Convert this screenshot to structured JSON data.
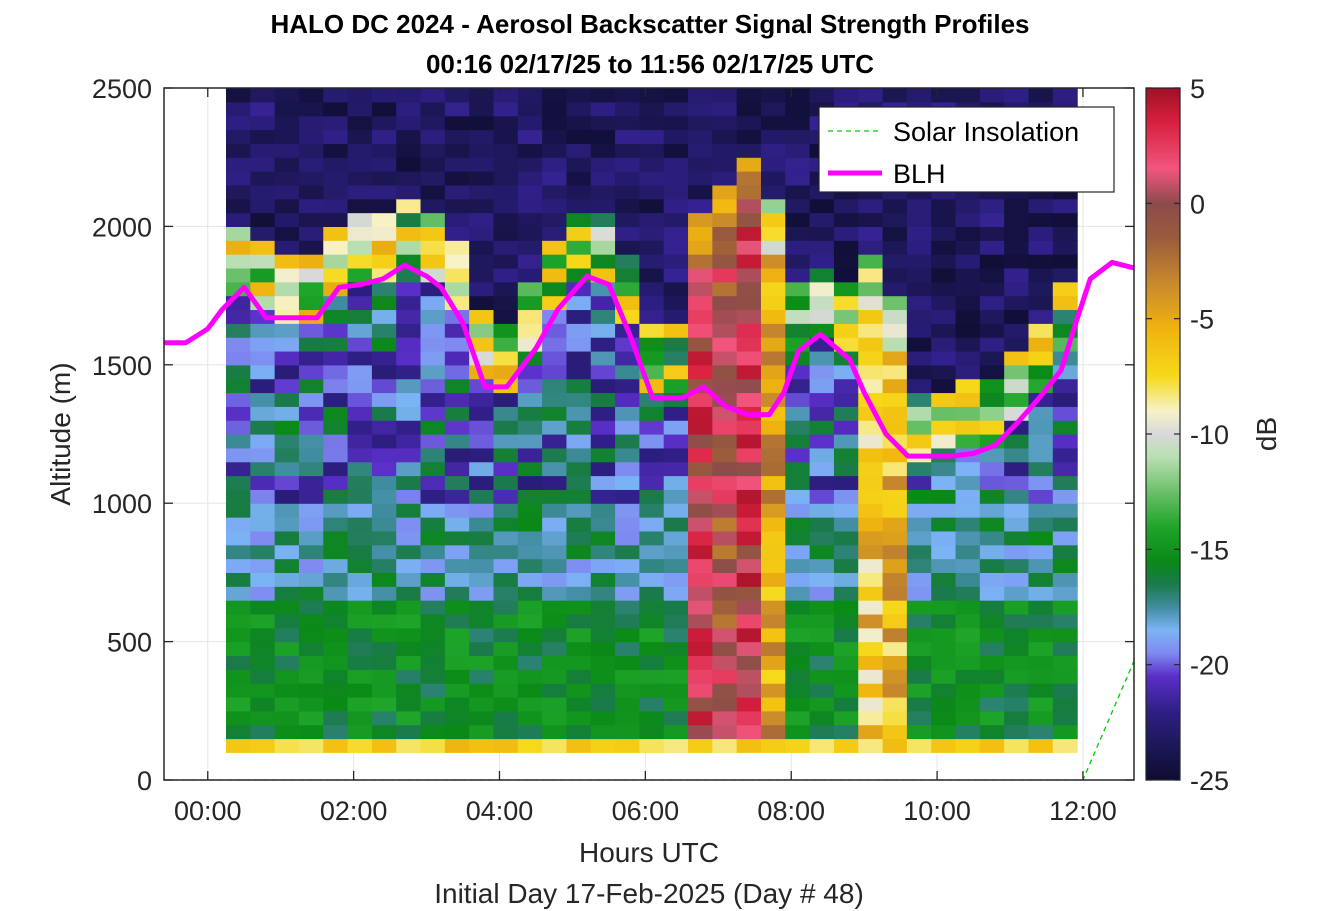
{
  "chart_data": {
    "type": "heatmap",
    "title": "HALO DC 2024 - Aerosol Backscatter Signal Strength Profiles",
    "subtitle": "00:16 02/17/25 to 11:56 02/17/25  UTC",
    "xlabel": "Hours UTC",
    "xlabel2": "Initial Day 17-Feb-2025 (Day # 48)",
    "ylabel": "Altitude (m)",
    "colorbar_label": "dB",
    "xlim": [
      -0.6,
      12.7
    ],
    "ylim": [
      0,
      2500
    ],
    "clim": [
      -25,
      5
    ],
    "x_ticks": [
      0,
      2,
      4,
      6,
      8,
      10,
      12
    ],
    "x_tick_labels": [
      "00:00",
      "02:00",
      "04:00",
      "06:00",
      "08:00",
      "10:00",
      "12:00"
    ],
    "y_ticks": [
      0,
      500,
      1000,
      1500,
      2000,
      2500
    ],
    "y_tick_labels": [
      "0",
      "500",
      "1000",
      "1500",
      "2000",
      "2500"
    ],
    "cbar_ticks": [
      5,
      0,
      -5,
      -10,
      -15,
      -20,
      -25
    ],
    "cbar_tick_labels": [
      "5",
      "0",
      "-5",
      "-10",
      "-15",
      "-20",
      "-25"
    ],
    "grid": true,
    "legend_position": "top-right",
    "legend": [
      "Solar Insolation",
      "BLH"
    ],
    "colors": {
      "blh": "#ff00ff",
      "solar": "#00cc00"
    },
    "heatmap": {
      "x_start": 0.25,
      "x_end": 11.92,
      "n_cols": 35,
      "z_start": 100,
      "z_step": 50,
      "n_rows": 48,
      "near_surface_row_db": -7,
      "tall_plume_columns": [
        {
          "col": 19,
          "top_alt": 2050,
          "core_db": 1.5
        },
        {
          "col": 20,
          "top_alt": 2150,
          "core_db": 0
        },
        {
          "col": 21,
          "top_alt": 2250,
          "core_db": 2
        },
        {
          "col": 22,
          "top_alt": 2100,
          "core_db": -5
        },
        {
          "col": 26,
          "top_alt": 1900,
          "core_db": -6.5
        },
        {
          "col": 27,
          "top_alt": 1750,
          "core_db": -6
        }
      ]
    },
    "series": [
      {
        "name": "BLH",
        "x": [
          -0.6,
          -0.3,
          0.0,
          0.2,
          0.5,
          0.8,
          1.2,
          1.5,
          1.8,
          2.1,
          2.4,
          2.7,
          3.0,
          3.2,
          3.5,
          3.8,
          4.1,
          4.5,
          4.8,
          5.2,
          5.5,
          5.8,
          6.1,
          6.5,
          6.8,
          7.1,
          7.4,
          7.7,
          7.9,
          8.1,
          8.4,
          8.8,
          9.0,
          9.3,
          9.6,
          9.9,
          10.2,
          10.5,
          10.8,
          11.1,
          11.4,
          11.7,
          11.9,
          12.1,
          12.4,
          12.7
        ],
        "y": [
          1580,
          1580,
          1630,
          1700,
          1780,
          1670,
          1670,
          1670,
          1780,
          1790,
          1810,
          1860,
          1820,
          1780,
          1650,
          1420,
          1420,
          1560,
          1700,
          1820,
          1790,
          1600,
          1380,
          1380,
          1420,
          1350,
          1320,
          1320,
          1400,
          1550,
          1610,
          1520,
          1400,
          1250,
          1170,
          1170,
          1170,
          1180,
          1210,
          1290,
          1380,
          1480,
          1650,
          1810,
          1870,
          1850
        ]
      },
      {
        "name": "Solar Insolation",
        "x": [
          -0.6,
          12.0,
          12.7
        ],
        "y": [
          0,
          0,
          430
        ]
      }
    ]
  }
}
